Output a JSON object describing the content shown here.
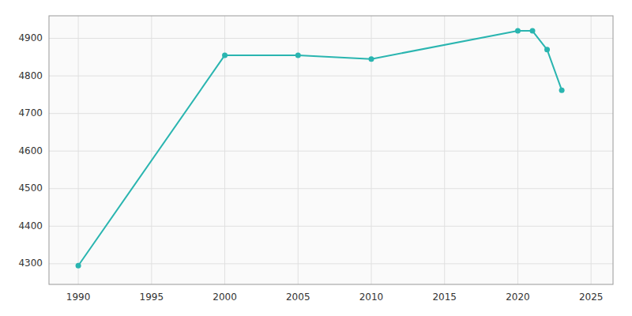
{
  "chart_data": {
    "type": "line",
    "x": [
      1990,
      2000,
      2005,
      2010,
      2020,
      2021,
      2022,
      2023
    ],
    "values": [
      4295,
      4855,
      4855,
      4845,
      4920,
      4920,
      4870,
      4762
    ],
    "color": "#2ab5b0",
    "marker": "circle",
    "xlim": [
      1988,
      2026.5
    ],
    "ylim": [
      4245,
      4960
    ],
    "xticks": [
      1990,
      1995,
      2000,
      2005,
      2010,
      2015,
      2020,
      2025
    ],
    "yticks": [
      4300,
      4400,
      4500,
      4600,
      4700,
      4800,
      4900
    ],
    "grid": true
  }
}
